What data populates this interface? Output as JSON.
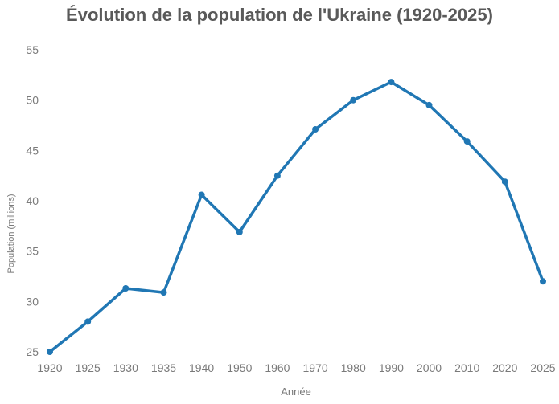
{
  "page": {
    "background": "#ffffff"
  },
  "chart_data": {
    "type": "line",
    "title": "Évolution de la population de l'Ukraine (1920-2025)",
    "xlabel": "Année",
    "ylabel": "Population (millions)",
    "categories": [
      "1920",
      "1925",
      "1930",
      "1935",
      "1940",
      "1950",
      "1960",
      "1970",
      "1980",
      "1990",
      "2000",
      "2010",
      "2020",
      "2025"
    ],
    "series": [
      {
        "name": "Population",
        "values": [
          25.0,
          28.0,
          31.3,
          30.9,
          40.6,
          36.9,
          42.5,
          47.1,
          50.0,
          51.8,
          49.5,
          45.9,
          41.9,
          32.0
        ]
      }
    ],
    "ylim": [
      25,
      55
    ],
    "yticks": [
      25,
      30,
      35,
      40,
      45,
      50,
      55
    ],
    "grid": false,
    "legend": "none",
    "axis_spines": false,
    "line_color": "#2077b4",
    "marker_color": "#2077b4",
    "marker": "circle",
    "title_color": "#595959",
    "tick_color": "#7a7a7a"
  }
}
